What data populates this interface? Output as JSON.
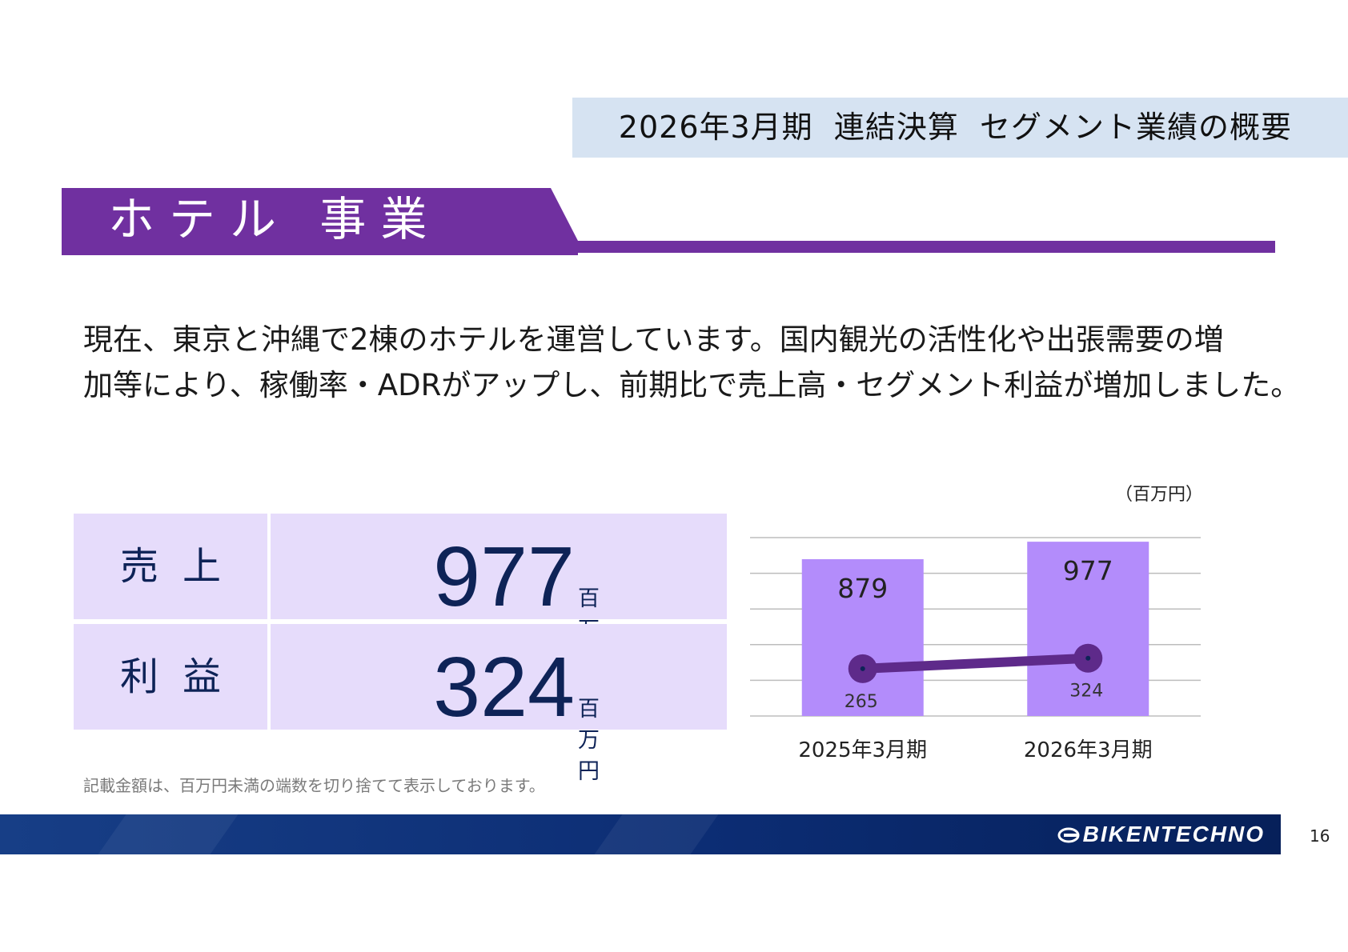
{
  "header": {
    "title": "2026年3月期  連結決算  セグメント業績の概要"
  },
  "section": {
    "title": "ホテル 事業"
  },
  "summary": {
    "line1": "現在、東京と沖縄で2棟のホテルを運営しています。国内観光の活性化や出張需要の増",
    "line2": "加等により、稼働率・ADRがアップし、前期比で売上高・セグメント利益が増加しました。"
  },
  "kpi": [
    {
      "label": "売上",
      "value": "977",
      "unit": "百万円"
    },
    {
      "label": "利益",
      "value": "324",
      "unit": "百万円"
    }
  ],
  "note": "記載金額は、百万円未満の端数を切り捨てて表示しております。",
  "unit_label": "（百万円）",
  "colors": {
    "accent_purple": "#7030a0",
    "bar_purple": "#b38cfb",
    "line_purple": "#5e2a8a",
    "kpi_bg": "#e6dcfb",
    "kpi_text": "#0e2357",
    "header_bg": "#d6e3f2",
    "footer_navy": "#0c2d74"
  },
  "chart_data": {
    "type": "bar",
    "categories": [
      "2025年3月期",
      "2026年3月期"
    ],
    "series": [
      {
        "kind": "bar",
        "values": [
          879,
          977
        ]
      },
      {
        "kind": "line",
        "values": [
          265,
          324
        ]
      }
    ],
    "ylim": [
      0,
      1000
    ],
    "grid": true,
    "legend": "none",
    "unit": "（百万円）"
  },
  "footer": {
    "brand": "BIKENTECHNO",
    "page_number": "16"
  }
}
